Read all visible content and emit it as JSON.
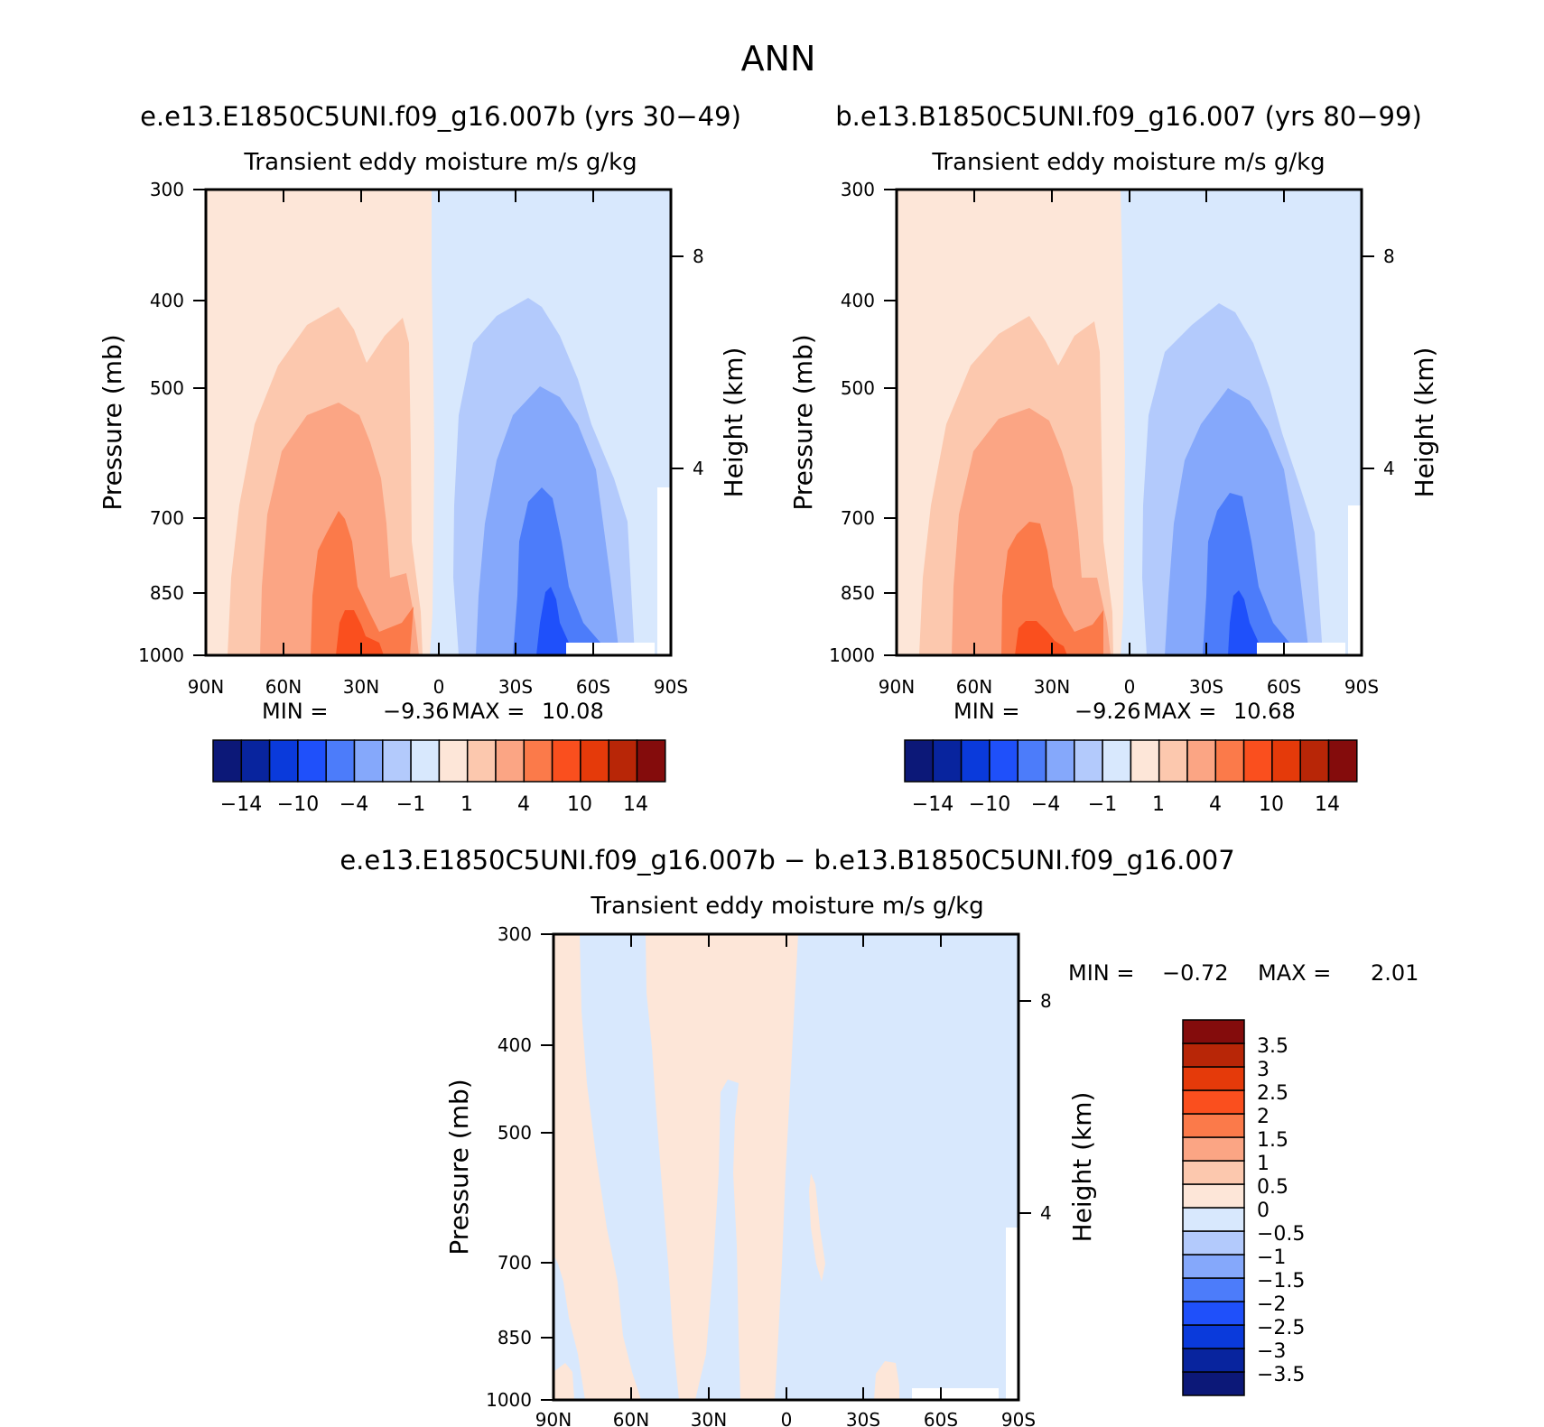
{
  "figure": {
    "title": "ANN",
    "difference_title": "e.e13.E1850C5UNI.f09_g16.007b − b.e13.B1850C5UNI.f09_g16.007"
  },
  "colors": {
    "abs_palette": [
      "#0c1878",
      "#08249e",
      "#0a3adb",
      "#1f50fa",
      "#4c7cfa",
      "#85a8fb",
      "#b3cafc",
      "#d8e8fd",
      "#fde6d8",
      "#fcc8ae",
      "#fba584",
      "#fb7a4a",
      "#fa4f1e",
      "#e53a0a",
      "#b82607",
      "#840c0c"
    ],
    "diff_palette": [
      "#0c1878",
      "#08249e",
      "#0a3adb",
      "#1f50fa",
      "#4c7cfa",
      "#85a8fb",
      "#b3cafc",
      "#d8e8fd",
      "#fde6d8",
      "#fcc8ae",
      "#fba584",
      "#fb7a4a",
      "#fa4f1e",
      "#e53a0a",
      "#b82607",
      "#840c0c"
    ]
  },
  "chart_data": [
    {
      "type": "contour",
      "case_title": "e.e13.E1850C5UNI.f09_g16.007b (yrs 30−49)",
      "title": "Transient eddy moisture m/s g/kg",
      "ylabel": "Pressure (mb)",
      "ylabel_right": "Height (km)",
      "x_tick_labels": [
        "90N",
        "60N",
        "30N",
        "0",
        "30S",
        "60S",
        "90S"
      ],
      "y_tick_labels": [
        "300",
        "400",
        "500",
        "700",
        "850",
        "1000"
      ],
      "y_ticks_right": [
        "8",
        "4"
      ],
      "stats": {
        "min_label": "MIN =",
        "min": "−9.36",
        "max_label": "MAX =",
        "max": "10.08"
      },
      "colorbar_labels": [
        "−14",
        "−10",
        "−4",
        "−1",
        "1",
        "4",
        "10",
        "14"
      ],
      "centers": [
        {
          "lat": 38,
          "lev": 980,
          "value": 10.08
        },
        {
          "lat": 12,
          "lev": 1000,
          "value": 3
        },
        {
          "lat": -43,
          "lev": 1000,
          "value": -9.36
        }
      ]
    },
    {
      "type": "contour",
      "case_title": "b.e13.B1850C5UNI.f09_g16.007 (yrs 80−99)",
      "title": "Transient eddy moisture m/s g/kg",
      "ylabel": "Pressure (mb)",
      "ylabel_right": "Height (km)",
      "x_tick_labels": [
        "90N",
        "60N",
        "30N",
        "0",
        "30S",
        "60S",
        "90S"
      ],
      "y_tick_labels": [
        "300",
        "400",
        "500",
        "700",
        "850",
        "1000"
      ],
      "y_ticks_right": [
        "8",
        "4"
      ],
      "stats": {
        "min_label": "MIN =",
        "min": "−9.26",
        "max_label": "MAX =",
        "max": "10.68"
      },
      "colorbar_labels": [
        "−14",
        "−10",
        "−4",
        "−1",
        "1",
        "4",
        "10",
        "14"
      ],
      "centers": [
        {
          "lat": 38,
          "lev": 980,
          "value": 10.68
        },
        {
          "lat": 12,
          "lev": 1000,
          "value": 3
        },
        {
          "lat": -43,
          "lev": 1000,
          "value": -9.26
        }
      ]
    },
    {
      "type": "contour",
      "title": "Transient eddy moisture m/s g/kg",
      "ylabel": "Pressure (mb)",
      "ylabel_right": "Height (km)",
      "x_tick_labels": [
        "90N",
        "60N",
        "30N",
        "0",
        "30S",
        "60S",
        "90S"
      ],
      "y_tick_labels": [
        "300",
        "400",
        "500",
        "700",
        "850",
        "1000"
      ],
      "y_ticks_right": [
        "8",
        "4"
      ],
      "stats": {
        "min_label": "MIN =",
        "min": "−0.72",
        "max_label": "MAX =",
        "max": "2.01"
      },
      "colorbar_labels": [
        "3.5",
        "3",
        "2.5",
        "2",
        "1.5",
        "1",
        "0.5",
        "0",
        "−0.5",
        "−1",
        "−1.5",
        "−2",
        "−2.5",
        "−3",
        "−3.5"
      ]
    }
  ]
}
